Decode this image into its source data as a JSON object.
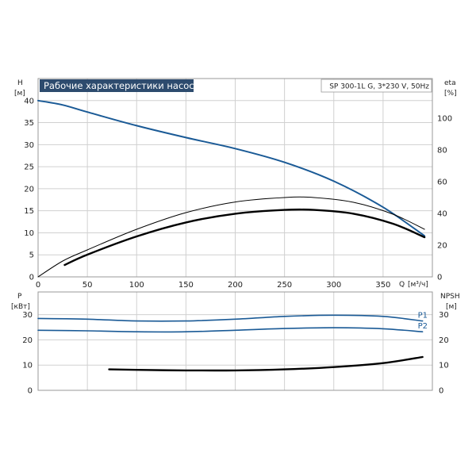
{
  "chart_data": [
    {
      "type": "line",
      "title": "Рабочие характеристики насоса",
      "model": "SP 300-1L G, 3*230 V, 50Hz",
      "ylabel": "H",
      "yunit": "[м]",
      "y2label": "eta",
      "y2unit": "[%]",
      "xlabel": "Q",
      "xunit": "[м³/ч]",
      "xlim": [
        0,
        400
      ],
      "ylim": [
        0,
        45
      ],
      "y2lim": [
        0,
        125
      ],
      "grid": true,
      "xticks": [
        "0",
        "50",
        "100",
        "150",
        "200",
        "250",
        "300",
        "350"
      ],
      "yticks": [
        "0",
        "5",
        "10",
        "15",
        "20",
        "25",
        "30",
        "35",
        "40"
      ],
      "y2ticks": [
        "0",
        "20",
        "40",
        "60",
        "80",
        "100"
      ],
      "series": [
        {
          "axis": "left",
          "color": "#1a5a96",
          "points": [
            [
              0,
              40
            ],
            [
              25,
              39
            ],
            [
              50,
              37.4
            ],
            [
              100,
              34.3
            ],
            [
              150,
              31.6
            ],
            [
              200,
              29.1
            ],
            [
              250,
              26
            ],
            [
              300,
              21.7
            ],
            [
              350,
              15.8
            ],
            [
              392,
              9.3
            ]
          ]
        },
        {
          "axis": "right",
          "color": "#000000",
          "width": "thin",
          "points": [
            [
              0,
              0
            ],
            [
              25,
              10
            ],
            [
              50,
              17
            ],
            [
              100,
              30
            ],
            [
              150,
              40.5
            ],
            [
              200,
              47.2
            ],
            [
              250,
              50
            ],
            [
              280,
              50
            ],
            [
              320,
              47
            ],
            [
              360,
              39.5
            ],
            [
              392,
              30
            ]
          ]
        },
        {
          "axis": "right",
          "color": "#000000",
          "width": "thick",
          "points": [
            [
              27,
              7.5
            ],
            [
              50,
              14
            ],
            [
              100,
              25.5
            ],
            [
              150,
              34.3
            ],
            [
              200,
              39.8
            ],
            [
              250,
              42.2
            ],
            [
              280,
              42.2
            ],
            [
              320,
              39.8
            ],
            [
              360,
              33.5
            ],
            [
              392,
              25
            ]
          ]
        }
      ]
    },
    {
      "type": "line",
      "ylabel": "P",
      "yunit": "[кВт]",
      "y2label": "NPSH",
      "y2unit": "[м]",
      "xlim": [
        0,
        400
      ],
      "ylim": [
        0,
        39
      ],
      "y2lim": [
        0,
        39
      ],
      "grid": true,
      "yticks": [
        "0",
        "10",
        "20",
        "30"
      ],
      "y2ticks": [
        "0",
        "10",
        "20",
        "30"
      ],
      "series": [
        {
          "name": "P1",
          "axis": "left",
          "color": "#1a5a96",
          "points": [
            [
              0,
              28.5
            ],
            [
              50,
              28.2
            ],
            [
              100,
              27.5
            ],
            [
              150,
              27.5
            ],
            [
              200,
              28.2
            ],
            [
              250,
              29.3
            ],
            [
              300,
              29.8
            ],
            [
              350,
              29.3
            ],
            [
              390,
              27.5
            ]
          ]
        },
        {
          "name": "P2",
          "axis": "left",
          "color": "#1a5a96",
          "points": [
            [
              0,
              23.8
            ],
            [
              50,
              23.6
            ],
            [
              100,
              23.2
            ],
            [
              150,
              23.2
            ],
            [
              200,
              23.8
            ],
            [
              250,
              24.5
            ],
            [
              300,
              24.8
            ],
            [
              350,
              24.4
            ],
            [
              390,
              23.2
            ]
          ]
        },
        {
          "axis": "right",
          "color": "#000000",
          "width": "thick",
          "points": [
            [
              72,
              8.3
            ],
            [
              100,
              8.1
            ],
            [
              150,
              7.9
            ],
            [
              200,
              7.9
            ],
            [
              250,
              8.3
            ],
            [
              300,
              9.2
            ],
            [
              350,
              10.8
            ],
            [
              390,
              13.2
            ]
          ]
        }
      ]
    }
  ]
}
